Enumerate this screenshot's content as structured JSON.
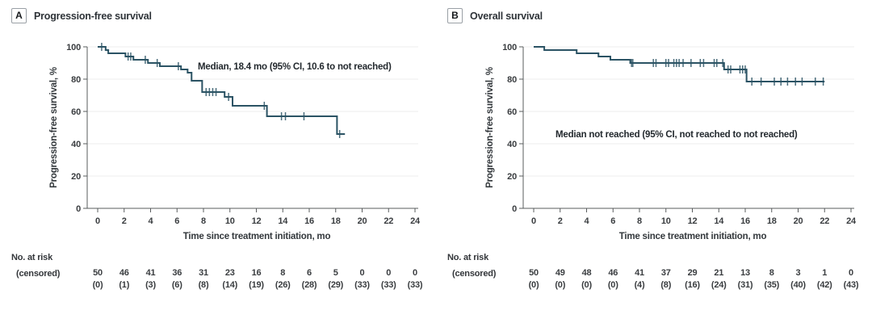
{
  "figure": {
    "curve_color": "#2b5364",
    "grid_color": "#ececec",
    "axis_color": "#595c5e",
    "text_color": "#3a3d40"
  },
  "labels": {
    "no_at_risk": "No. at risk",
    "censored": "(censored)"
  },
  "chart_data": [
    {
      "panel": "A",
      "type": "line",
      "subtype": "kaplan-meier-step",
      "title": "Progression-free survival",
      "annotation": "Median, 18.4 mo (95% CI, 10.6 to not reached)",
      "xlabel": "Time since treatment initiation, mo",
      "ylabel": "Progression-free survival, %",
      "xlim": [
        0,
        24
      ],
      "ylim": [
        0,
        100
      ],
      "x_ticks": [
        0,
        2,
        4,
        6,
        8,
        10,
        12,
        14,
        16,
        18,
        20,
        22,
        24
      ],
      "y_ticks": [
        0,
        20,
        40,
        60,
        80,
        100
      ],
      "grid": "horizontal",
      "legend": "none",
      "steps": [
        [
          0,
          100
        ],
        [
          0.6,
          98
        ],
        [
          0.8,
          96
        ],
        [
          2.1,
          94
        ],
        [
          2.7,
          92
        ],
        [
          3.8,
          90
        ],
        [
          4.7,
          88
        ],
        [
          6.3,
          86
        ],
        [
          6.8,
          84
        ],
        [
          7.1,
          79
        ],
        [
          7.9,
          72
        ],
        [
          9.6,
          69
        ],
        [
          10.2,
          63.5
        ],
        [
          12.8,
          57
        ],
        [
          18.1,
          46
        ]
      ],
      "end_time": 18.7,
      "censor_marks": [
        [
          0.3,
          100
        ],
        [
          2.3,
          94
        ],
        [
          2.5,
          94
        ],
        [
          3.6,
          92
        ],
        [
          4.5,
          90
        ],
        [
          6.1,
          88
        ],
        [
          8.2,
          72
        ],
        [
          8.45,
          72
        ],
        [
          8.7,
          72
        ],
        [
          8.95,
          72
        ],
        [
          9.9,
          69
        ],
        [
          12.6,
          63.5
        ],
        [
          13.9,
          57
        ],
        [
          14.2,
          57
        ],
        [
          15.6,
          57
        ],
        [
          18.3,
          46
        ]
      ],
      "at_risk": [
        50,
        46,
        41,
        36,
        31,
        23,
        16,
        8,
        6,
        5,
        0,
        0,
        0
      ],
      "censored_counts": [
        "(0)",
        "(1)",
        "(3)",
        "(6)",
        "(8)",
        "(14)",
        "(19)",
        "(26)",
        "(28)",
        "(29)",
        "(33)",
        "(33)",
        "(33)"
      ]
    },
    {
      "panel": "B",
      "type": "line",
      "subtype": "kaplan-meier-step",
      "title": "Overall survival",
      "annotation": "Median not reached (95% CI, not reached to not reached)",
      "xlabel": "Time since treatment initiation, mo",
      "ylabel": "Progression-free survival, %",
      "xlim": [
        0,
        24
      ],
      "ylim": [
        0,
        100
      ],
      "x_ticks": [
        0,
        2,
        4,
        6,
        8,
        10,
        12,
        14,
        16,
        18,
        20,
        22,
        24
      ],
      "y_ticks": [
        0,
        20,
        40,
        60,
        80,
        100
      ],
      "grid": "horizontal",
      "legend": "none",
      "steps": [
        [
          0,
          100
        ],
        [
          0.8,
          98
        ],
        [
          3.25,
          96
        ],
        [
          4.9,
          94
        ],
        [
          5.8,
          92
        ],
        [
          7.3,
          90
        ],
        [
          14.4,
          86
        ],
        [
          16.1,
          78.5
        ]
      ],
      "end_time": 22.0,
      "censor_marks": [
        [
          7.4,
          90
        ],
        [
          7.5,
          90
        ],
        [
          9.05,
          90
        ],
        [
          9.25,
          90
        ],
        [
          10.0,
          90
        ],
        [
          10.2,
          90
        ],
        [
          10.6,
          90
        ],
        [
          10.8,
          90
        ],
        [
          11.0,
          90
        ],
        [
          11.3,
          90
        ],
        [
          11.9,
          90
        ],
        [
          12.6,
          90
        ],
        [
          12.85,
          90
        ],
        [
          13.65,
          90
        ],
        [
          13.85,
          90
        ],
        [
          14.3,
          90
        ],
        [
          14.7,
          86
        ],
        [
          14.9,
          86
        ],
        [
          15.6,
          86
        ],
        [
          15.8,
          86
        ],
        [
          16.0,
          86
        ],
        [
          16.5,
          78.5
        ],
        [
          17.2,
          78.5
        ],
        [
          18.2,
          78.5
        ],
        [
          18.7,
          78.5
        ],
        [
          19.2,
          78.5
        ],
        [
          19.8,
          78.5
        ],
        [
          20.3,
          78.5
        ],
        [
          21.3,
          78.5
        ],
        [
          21.9,
          78.5
        ]
      ],
      "at_risk": [
        50,
        49,
        48,
        46,
        41,
        37,
        29,
        21,
        13,
        8,
        3,
        1,
        0
      ],
      "censored_counts": [
        "(0)",
        "(0)",
        "(0)",
        "(0)",
        "(4)",
        "(8)",
        "(16)",
        "(24)",
        "(31)",
        "(35)",
        "(40)",
        "(42)",
        "(43)"
      ]
    }
  ]
}
